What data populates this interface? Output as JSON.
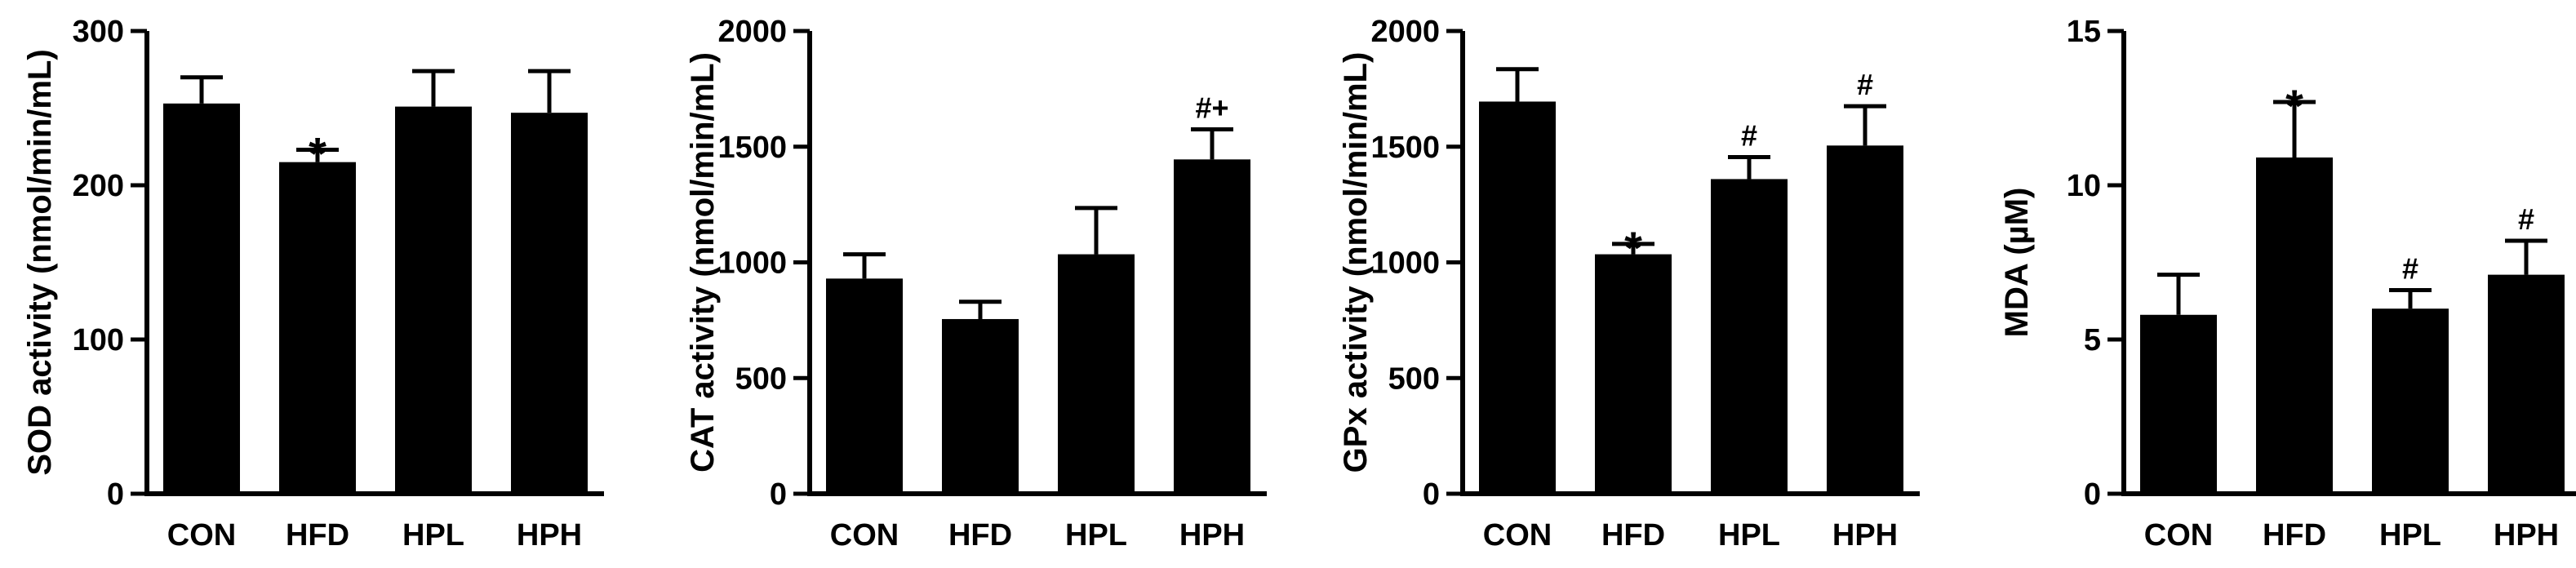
{
  "chart_data": [
    {
      "type": "bar",
      "categories": [
        "CON",
        "HFD",
        "HPL",
        "HPH"
      ],
      "values": [
        253,
        215,
        251,
        247
      ],
      "errors": [
        17,
        8,
        23,
        27
      ],
      "annotations": [
        "",
        "*",
        "",
        ""
      ],
      "ylabel": "SOD activity (nmol/min/mL)",
      "ylim": [
        0,
        300
      ],
      "yticks": [
        0,
        100,
        200,
        300
      ],
      "color": "#000000"
    },
    {
      "type": "bar",
      "categories": [
        "CON",
        "HFD",
        "HPL",
        "HPH"
      ],
      "values": [
        930,
        755,
        1035,
        1445
      ],
      "errors": [
        105,
        75,
        200,
        130
      ],
      "annotations": [
        "",
        "",
        "",
        "#+"
      ],
      "ylabel": "CAT activity (nmol/min/mL)",
      "ylim": [
        0,
        2000
      ],
      "yticks": [
        0,
        500,
        1000,
        1500,
        2000
      ],
      "color": "#000000"
    },
    {
      "type": "bar",
      "categories": [
        "CON",
        "HFD",
        "HPL",
        "HPH"
      ],
      "values": [
        1695,
        1035,
        1360,
        1505
      ],
      "errors": [
        140,
        45,
        95,
        170
      ],
      "annotations": [
        "",
        "*",
        "#",
        "#"
      ],
      "ylabel": "GPx activity (nmol/min/mL)",
      "ylim": [
        0,
        2000
      ],
      "yticks": [
        0,
        500,
        1000,
        1500,
        2000
      ],
      "color": "#000000"
    },
    {
      "type": "bar",
      "categories": [
        "CON",
        "HFD",
        "HPL",
        "HPH"
      ],
      "values": [
        5.8,
        10.9,
        6.0,
        7.1
      ],
      "errors": [
        1.3,
        1.8,
        0.6,
        1.1
      ],
      "annotations": [
        "",
        "*",
        "#",
        "#"
      ],
      "ylabel": "MDA (µM)",
      "ylim": [
        0,
        15
      ],
      "yticks": [
        0,
        5,
        10,
        15
      ],
      "color": "#000000"
    }
  ]
}
